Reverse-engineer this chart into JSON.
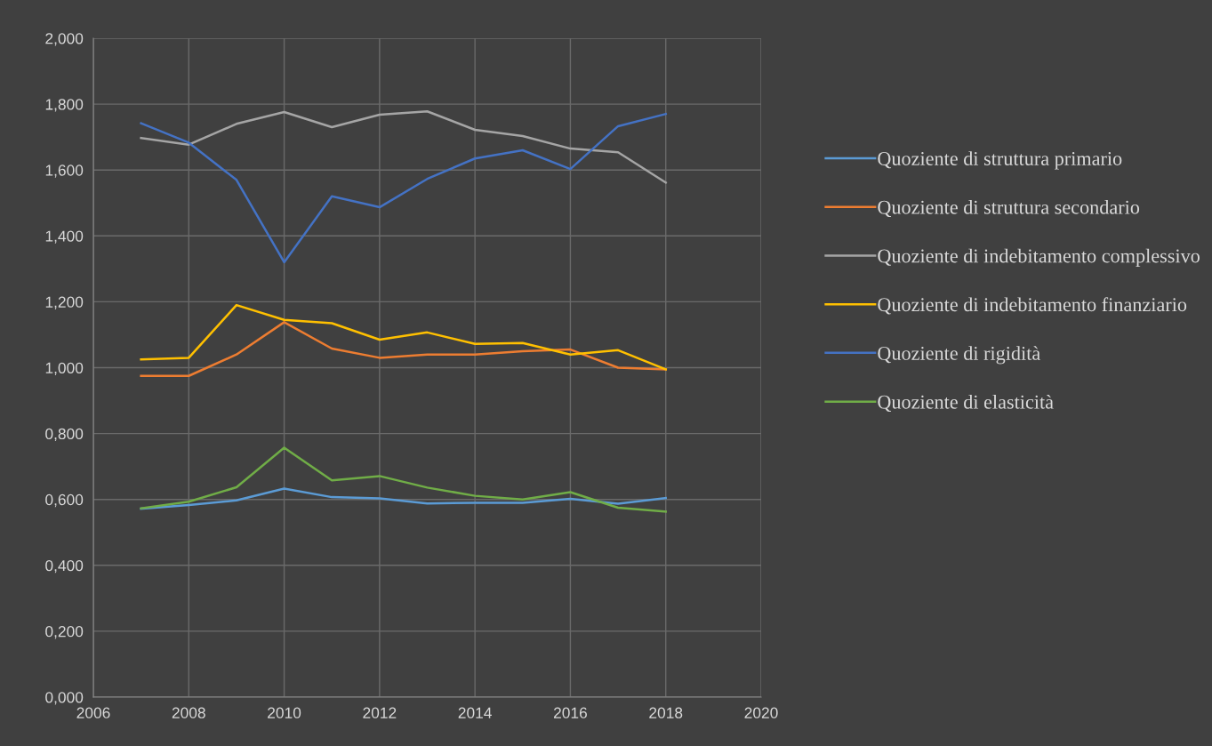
{
  "chart_data": {
    "type": "line",
    "x": [
      2007,
      2008,
      2009,
      2010,
      2011,
      2012,
      2013,
      2014,
      2015,
      2016,
      2017,
      2018
    ],
    "series": [
      {
        "name": "Quoziente di struttura primario",
        "color": "#5b9bd5",
        "values": [
          0.572,
          0.583,
          0.597,
          0.633,
          0.607,
          0.603,
          0.588,
          0.59,
          0.59,
          0.602,
          0.587,
          0.604
        ]
      },
      {
        "name": "Quoziente di struttura secondario",
        "color": "#ed7d31",
        "values": [
          0.975,
          0.975,
          1.04,
          1.138,
          1.058,
          1.03,
          1.04,
          1.04,
          1.05,
          1.055,
          1.0,
          0.995
        ]
      },
      {
        "name": "Quoziente di indebitamento complessivo",
        "color": "#a5a5a5",
        "values": [
          1.697,
          1.677,
          1.74,
          1.776,
          1.73,
          1.768,
          1.778,
          1.722,
          1.703,
          1.665,
          1.654,
          1.562
        ]
      },
      {
        "name": "Quoziente di indebitamento finanziario",
        "color": "#ffc000",
        "values": [
          1.025,
          1.03,
          1.19,
          1.145,
          1.135,
          1.085,
          1.107,
          1.072,
          1.075,
          1.04,
          1.053,
          0.995
        ]
      },
      {
        "name": "Quoziente di rigidità",
        "color": "#4472c4",
        "values": [
          1.742,
          1.683,
          1.57,
          1.32,
          1.52,
          1.487,
          1.573,
          1.635,
          1.66,
          1.603,
          1.733,
          1.77
        ]
      },
      {
        "name": "Quoziente di elasticità",
        "color": "#70ad47",
        "values": [
          0.573,
          0.593,
          0.637,
          0.757,
          0.658,
          0.671,
          0.636,
          0.611,
          0.6,
          0.622,
          0.575,
          0.563
        ]
      }
    ],
    "xlim": [
      2006,
      2020
    ],
    "xticks": [
      2006,
      2008,
      2010,
      2012,
      2014,
      2016,
      2018,
      2020
    ],
    "ylim": [
      0,
      2
    ],
    "yticks": [
      {
        "value": 0,
        "label": "0,000"
      },
      {
        "value": 0.2,
        "label": "0,200"
      },
      {
        "value": 0.4,
        "label": "0,400"
      },
      {
        "value": 0.6,
        "label": "0,600"
      },
      {
        "value": 0.8,
        "label": "0,800"
      },
      {
        "value": 1.0,
        "label": "1,000"
      },
      {
        "value": 1.2,
        "label": "1,200"
      },
      {
        "value": 1.4,
        "label": "1,400"
      },
      {
        "value": 1.6,
        "label": "1,600"
      },
      {
        "value": 1.8,
        "label": "1,800"
      },
      {
        "value": 2.0,
        "label": "2,000"
      }
    ],
    "grid": true,
    "legend": "right",
    "marker": "none",
    "line_style": "solid"
  }
}
